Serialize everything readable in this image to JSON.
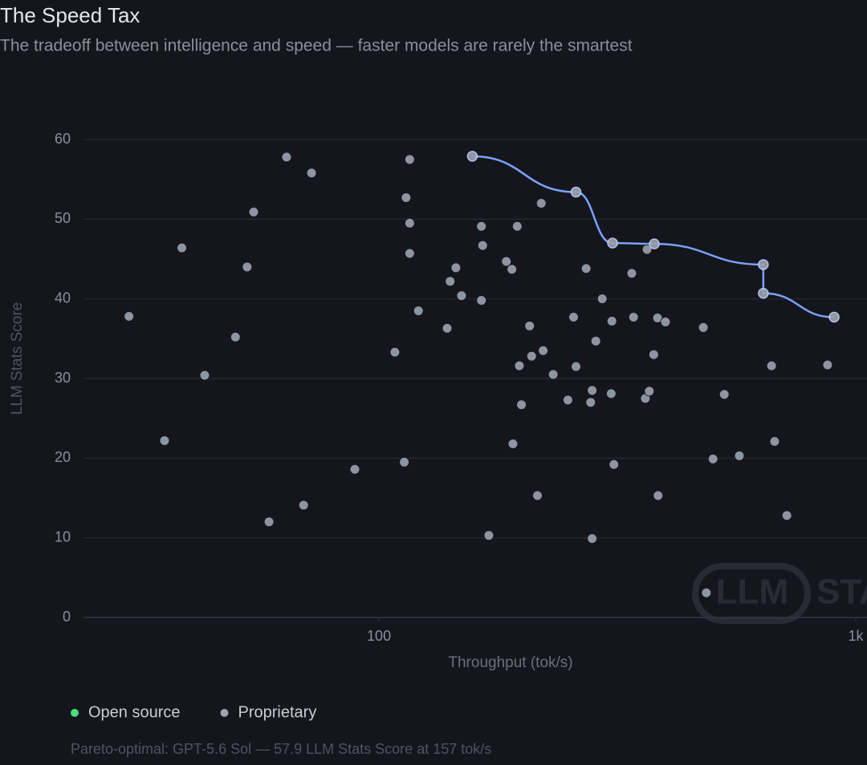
{
  "chart_data": {
    "type": "scatter",
    "title": "The Speed Tax",
    "subtitle": "The tradeoff between intelligence and speed — faster models are rarely the smartest",
    "x_label": "Throughput (tok/s)",
    "y_label": "LLM Stats Score",
    "footnote": "Pareto-optimal: GPT-5.6 Sol — 57.9 LLM Stats Score at 157 tok/s",
    "watermark": {
      "badge": "LLM",
      "text": "STATS"
    },
    "x_log": true,
    "xlim": [
      24,
      1056
    ],
    "xticks": [
      100,
      {
        "value": 1000,
        "label": "1k"
      }
    ],
    "ylim": [
      0,
      60
    ],
    "yticks": [
      0,
      10,
      20,
      30,
      40,
      50,
      60
    ],
    "grid": true,
    "frontier_color": "#7aa2f7",
    "series": [
      {
        "name": "Open source",
        "color": "#4ade80",
        "x": [],
        "values": []
      },
      {
        "name": "Proprietary",
        "color": "#9ca3af",
        "x": [
          29.9,
          35.5,
          38.6,
          43.1,
          50.0,
          52.9,
          54.6,
          58.8,
          64.0,
          69.5,
          72.2,
          89.0,
          108,
          113,
          114,
          116,
          116,
          116,
          121,
          139,
          141,
          145,
          149,
          157,
          164,
          164,
          165,
          170,
          185,
          190,
          191,
          195,
          197,
          199,
          207,
          209,
          215,
          219,
          221,
          232,
          249,
          256,
          259,
          259,
          272,
          278,
          280,
          280,
          285,
          294,
          307,
          308,
          309,
          311,
          339,
          342,
          362,
          365,
          369,
          377,
          378,
          384,
          385,
          399,
          479,
          486,
          502,
          530,
          570,
          640,
          640,
          666,
          676,
          717,
          873,
          901
        ],
        "values": [
          37.8,
          22.2,
          46.4,
          30.4,
          35.2,
          44.0,
          50.9,
          12.0,
          57.8,
          14.1,
          55.8,
          18.6,
          33.3,
          19.5,
          52.7,
          57.5,
          49.5,
          45.7,
          38.5,
          36.3,
          42.2,
          43.9,
          40.4,
          57.9,
          49.1,
          39.8,
          46.7,
          10.3,
          44.7,
          43.7,
          21.8,
          49.1,
          31.6,
          26.7,
          36.6,
          32.8,
          15.3,
          52.0,
          33.5,
          30.5,
          27.3,
          37.7,
          31.5,
          53.4,
          43.8,
          27.0,
          28.5,
          9.9,
          34.7,
          40.0,
          28.1,
          37.2,
          47.0,
          19.2,
          43.2,
          37.7,
          27.5,
          46.2,
          28.4,
          33.0,
          46.9,
          37.6,
          15.3,
          37.1,
          36.4,
          3.1,
          19.9,
          28.0,
          20.3,
          44.3,
          40.7,
          31.6,
          22.1,
          12.8,
          31.7,
          37.7
        ]
      }
    ]
  }
}
